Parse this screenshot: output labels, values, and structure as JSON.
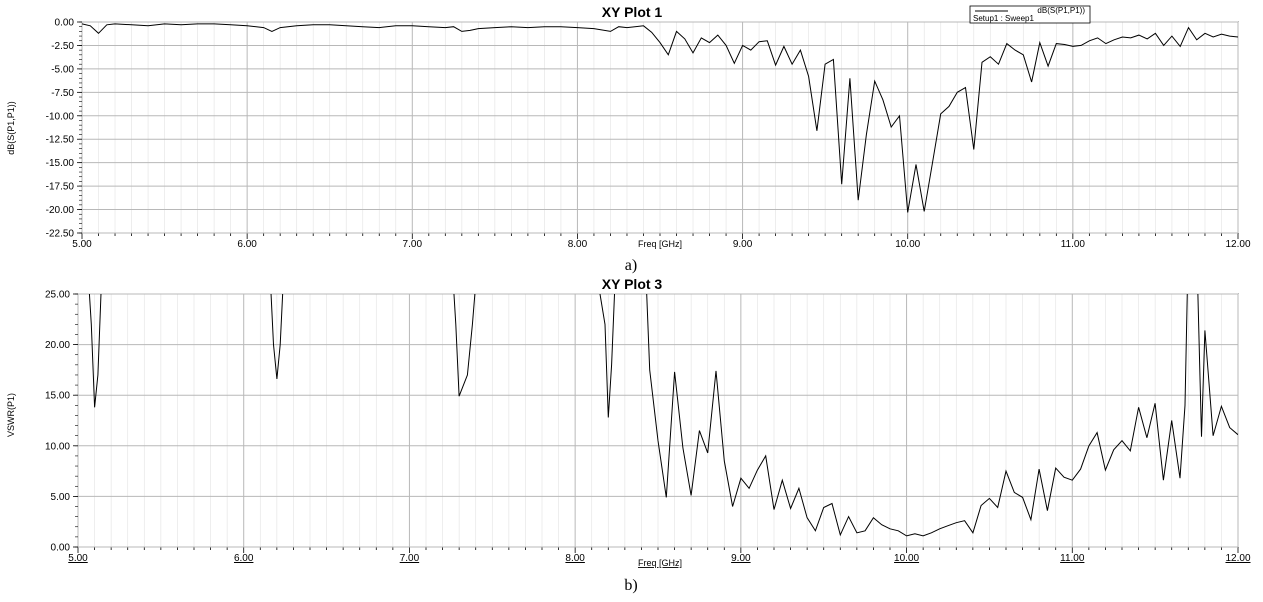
{
  "chart_data": [
    {
      "type": "line",
      "title": "XY Plot 1",
      "xlabel": "Freq [GHz]",
      "ylabel": "dB(S(P1,P1))",
      "caption": "a)",
      "xlim": [
        5.0,
        12.0
      ],
      "ylim": [
        -22.5,
        0.0
      ],
      "x_ticks": [
        "5.00",
        "6.00",
        "7.00",
        "8.00",
        "9.00",
        "10.00",
        "11.00",
        "12.00"
      ],
      "y_ticks": [
        "0.00",
        "-2.50",
        "-5.00",
        "-7.50",
        "-10.00",
        "-12.50",
        "-15.00",
        "-17.50",
        "-20.00",
        "-22.50"
      ],
      "legend": {
        "series_label": "dB(S(P1,P1))",
        "setup": "Setup1 : Sweep1"
      },
      "series": [
        {
          "name": "dB(S(P1,P1))",
          "x": [
            5.0,
            5.05,
            5.1,
            5.15,
            5.2,
            5.3,
            5.4,
            5.5,
            5.6,
            5.7,
            5.8,
            5.9,
            6.0,
            6.1,
            6.15,
            6.2,
            6.3,
            6.4,
            6.5,
            6.6,
            6.7,
            6.8,
            6.9,
            7.0,
            7.1,
            7.2,
            7.25,
            7.3,
            7.35,
            7.4,
            7.5,
            7.6,
            7.7,
            7.8,
            7.9,
            8.0,
            8.1,
            8.2,
            8.25,
            8.3,
            8.4,
            8.45,
            8.5,
            8.55,
            8.6,
            8.65,
            8.7,
            8.75,
            8.8,
            8.85,
            8.9,
            8.95,
            9.0,
            9.05,
            9.1,
            9.15,
            9.2,
            9.25,
            9.3,
            9.35,
            9.4,
            9.45,
            9.5,
            9.55,
            9.6,
            9.65,
            9.7,
            9.75,
            9.8,
            9.85,
            9.9,
            9.95,
            10.0,
            10.05,
            10.1,
            10.15,
            10.2,
            10.25,
            10.3,
            10.35,
            10.4,
            10.45,
            10.5,
            10.55,
            10.6,
            10.65,
            10.7,
            10.75,
            10.8,
            10.85,
            10.9,
            10.95,
            11.0,
            11.05,
            11.1,
            11.15,
            11.2,
            11.25,
            11.3,
            11.35,
            11.4,
            11.45,
            11.5,
            11.55,
            11.6,
            11.65,
            11.7,
            11.75,
            11.8,
            11.85,
            11.9,
            11.95,
            12.0
          ],
          "y": [
            -0.2,
            -0.4,
            -1.2,
            -0.3,
            -0.2,
            -0.3,
            -0.4,
            -0.2,
            -0.3,
            -0.2,
            -0.2,
            -0.3,
            -0.4,
            -0.6,
            -1.0,
            -0.6,
            -0.4,
            -0.3,
            -0.3,
            -0.4,
            -0.5,
            -0.6,
            -0.4,
            -0.4,
            -0.5,
            -0.6,
            -0.5,
            -1.0,
            -0.9,
            -0.7,
            -0.6,
            -0.5,
            -0.6,
            -0.5,
            -0.5,
            -0.6,
            -0.7,
            -1.0,
            -0.5,
            -0.6,
            -0.4,
            -1.1,
            -2.2,
            -3.5,
            -1.0,
            -1.8,
            -3.3,
            -1.7,
            -2.2,
            -1.4,
            -2.5,
            -4.4,
            -2.5,
            -3.0,
            -2.1,
            -2.0,
            -4.6,
            -2.6,
            -4.5,
            -3.0,
            -5.8,
            -11.6,
            -4.5,
            -4.0,
            -17.3,
            -6.0,
            -19.0,
            -12.0,
            -6.3,
            -8.3,
            -11.2,
            -10.0,
            -20.3,
            -15.2,
            -20.2,
            -15.0,
            -9.8,
            -9.0,
            -7.5,
            -7.0,
            -13.6,
            -4.3,
            -3.7,
            -4.5,
            -2.3,
            -3.0,
            -3.5,
            -6.4,
            -2.2,
            -4.7,
            -2.3,
            -2.4,
            -2.6,
            -2.5,
            -2.0,
            -1.7,
            -2.3,
            -1.9,
            -1.6,
            -1.7,
            -1.4,
            -1.8,
            -1.2,
            -2.5,
            -1.5,
            -2.6,
            -0.6,
            -1.9,
            -1.2,
            -1.6,
            -1.3,
            -1.5,
            -1.6
          ]
        }
      ]
    },
    {
      "type": "line",
      "title": "XY Plot 3",
      "xlabel": "Freq [GHz]",
      "ylabel": "VSWR(P1)",
      "caption": "b)",
      "xlim": [
        5.0,
        12.0
      ],
      "ylim": [
        0.0,
        25.0
      ],
      "x_ticks": [
        "5.00",
        "6.00",
        "7.00",
        "8.00",
        "9.00",
        "10.00",
        "11.00",
        "12.00"
      ],
      "y_ticks": [
        "25.00",
        "20.00",
        "15.00",
        "10.00",
        "5.00",
        "0.00"
      ],
      "series": [
        {
          "name": "VSWR(P1)",
          "x": [
            5.05,
            5.08,
            5.1,
            5.12,
            5.15,
            6.15,
            6.18,
            6.2,
            6.22,
            6.25,
            7.25,
            7.28,
            7.3,
            7.35,
            7.38,
            7.42,
            8.12,
            8.15,
            8.18,
            8.2,
            8.22,
            8.25,
            8.42,
            8.45,
            8.5,
            8.55,
            8.6,
            8.65,
            8.7,
            8.75,
            8.8,
            8.85,
            8.9,
            8.95,
            9.0,
            9.05,
            9.1,
            9.15,
            9.2,
            9.25,
            9.3,
            9.35,
            9.4,
            9.45,
            9.5,
            9.55,
            9.6,
            9.65,
            9.7,
            9.75,
            9.8,
            9.85,
            9.9,
            9.95,
            10.0,
            10.05,
            10.1,
            10.15,
            10.2,
            10.25,
            10.3,
            10.35,
            10.4,
            10.45,
            10.5,
            10.55,
            10.6,
            10.65,
            10.7,
            10.75,
            10.8,
            10.85,
            10.9,
            10.95,
            11.0,
            11.05,
            11.1,
            11.15,
            11.2,
            11.25,
            11.3,
            11.35,
            11.4,
            11.45,
            11.5,
            11.55,
            11.6,
            11.65,
            11.68,
            11.7,
            11.75,
            11.78,
            11.8,
            11.85,
            11.9,
            11.95,
            12.0
          ],
          "y": [
            30,
            22,
            13.8,
            17,
            30,
            30,
            20,
            16.6,
            20,
            30,
            30,
            22,
            14.9,
            17,
            22,
            30,
            30,
            25,
            22,
            12.8,
            18,
            30,
            30,
            17.5,
            10.5,
            4.9,
            17.3,
            9.8,
            5.1,
            11.5,
            9.3,
            17.4,
            8.5,
            4.0,
            6.8,
            5.8,
            7.6,
            9.0,
            3.7,
            6.6,
            3.8,
            5.8,
            2.9,
            1.6,
            3.9,
            4.3,
            1.2,
            3.0,
            1.4,
            1.6,
            2.9,
            2.2,
            1.8,
            1.6,
            1.1,
            1.3,
            1.1,
            1.4,
            1.8,
            2.1,
            2.4,
            2.6,
            1.4,
            4.1,
            4.8,
            3.9,
            7.5,
            5.4,
            4.9,
            2.7,
            7.7,
            3.6,
            7.8,
            6.9,
            6.6,
            7.7,
            10.0,
            11.3,
            7.6,
            9.6,
            10.5,
            9.5,
            13.8,
            10.8,
            14.2,
            6.6,
            12.5,
            6.8,
            14.0,
            30,
            30,
            10.9,
            21.4,
            11.0,
            13.9,
            11.8,
            11.1
          ]
        }
      ]
    }
  ]
}
